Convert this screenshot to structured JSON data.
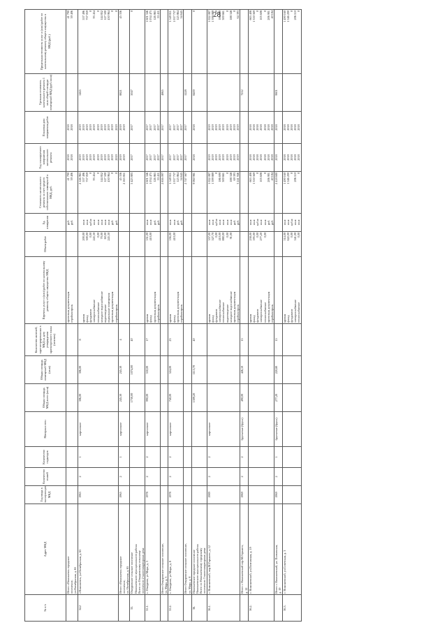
{
  "page_number": "28",
  "headers": [
    "№ п/п",
    "Адрес МКД",
    "Год ввода в эксплуатацию МКД",
    "Количество этажей",
    "Количество подъездов",
    "Материал стен",
    "Общая площадь МКД всего (кв.м)",
    "Общая площадь помещений МКД (кв.м)",
    "Количество жителей, зарегистрированных в МКД на дату утверждения краткосрочного плана (человек)",
    "Перечень услуг и (или) работ по капитальному ремонту общего имущества МКД",
    "Объем работ",
    "Ед. измерения",
    "Стоимость капитального ремонта за счет средств собственников помещений в МКД, руб.",
    "Год планируемого завершения капитального ремонта",
    "Плановая дата завершения работ",
    "Удельная стоимость капитального ремонта 1 кв.м общей площади помещений МКД (руб./кв.м)",
    "Предельная стоимость услуг и (или) работ по капитальному ремонту общего имущества в МКД (руб.)"
  ],
  "rows": [
    {
      "num": "",
      "addr": [
        "Итого г.Николаевск городское",
        "поселение,",
        "ул.Октябрьская, д. 65"
      ],
      "year": "",
      "floors": "",
      "entr": "",
      "walls": "",
      "area": "",
      "area2": "",
      "people": "",
      "works": [
        "проектная документация",
        "стройконтроль"
      ],
      "vol": [],
      "units": [
        "руб.",
        "руб."
      ],
      "cost": [
        "41 790",
        "39 406"
      ],
      "yr": [
        "2018",
        "2018"
      ],
      "yr2": [
        "2018",
        "2018"
      ],
      "unit_cost": "",
      "limit": [
        "41 790",
        "39 406"
      ]
    },
    {
      "num": "34.2",
      "addr": [
        "г.Николаевск, ул.Октябрьская, д. 65"
      ],
      "year": "1963",
      "floors": "2",
      "entr": "1",
      "walls": "кирпичное",
      "area": "306,00",
      "area2": "306,00",
      "people": "8",
      "works": [
        "",
        "кровля",
        "фасад",
        "фундамент",
        "электроснабжение",
        "теплоснабжение",
        "холодное водоснабжение",
        "водоотведение",
        "подвальные помещения",
        "проектная документация",
        "стройконтроль"
      ],
      "vol": [
        "",
        "200,00",
        "300,00",
        "0,00",
        "245,30",
        "0,00",
        "70,00",
        "60,00",
        "245,30",
        "",
        ""
      ],
      "units": [
        "",
        "кв.м",
        "кв.м",
        "куб.м",
        "кв.м",
        "кв.м",
        "кв.м",
        "кв.м",
        "кв.м",
        "руб.",
        "руб."
      ],
      "cost": [
        "2 126 965",
        "557 496",
        "757 059",
        "0",
        "93 454",
        "0",
        "144 852",
        "127 500",
        "430 964",
        "0",
        "0"
      ],
      "yr": [
        "2019",
        "2019",
        "2019",
        "2019",
        "2019",
        "2019",
        "2019",
        "2019",
        "2019",
        "2019",
        "2019"
      ],
      "yr2": [
        "2019",
        "2019",
        "2019",
        "2019",
        "2019",
        "2019",
        "2019",
        "2019",
        "2019",
        "2019",
        "2019"
      ],
      "unit_cost": "5465",
      "limit": [
        "",
        "557 496",
        "757 059",
        "0",
        "93 454",
        "0",
        "144 852",
        "127 500",
        "430 964",
        "0",
        "0"
      ]
    },
    {
      "num": "",
      "addr": [
        "Итого г.Николаевск городское",
        "поселение,",
        "ул. Октябрьская, д. 65"
      ],
      "year": "1965",
      "floors": "2",
      "entr": "1",
      "walls": "кирпичное",
      "area": "245,30",
      "area2": "245,30",
      "people": "4",
      "works": [],
      "vol": [],
      "units": [],
      "cost": [
        "45 336",
        "2 163 851"
      ],
      "yr": [
        "2019",
        "2019"
      ],
      "yr2": [
        "2019",
        "2019"
      ],
      "unit_cost": "8821",
      "limit": [
        "45 336"
      ]
    },
    {
      "num": "35.",
      "addr": [
        "Очкуровское сельское поселение",
        "Николаевского муниципального района",
        "Всего по Очкуровскому сельскому",
        "поселению 2 многоквартирных дома"
      ],
      "year": "",
      "floors": "",
      "entr": "",
      "walls": "",
      "area": "1730,00",
      "area2": "1074,00",
      "people": "40",
      "works": [],
      "vol": [],
      "units": [],
      "cost": [
        "5 423 805"
      ],
      "yr": [
        "2017"
      ],
      "yr2": [
        "2017"
      ],
      "unit_cost": "5047",
      "limit": [
        "0"
      ]
    },
    {
      "num": "35.1.",
      "addr": [
        "с. Очкурово, ул Мира, д. 3"
      ],
      "year": "1978",
      "floors": "2",
      "entr": "2",
      "walls": "кирпичное",
      "area": "990,00",
      "area2": "550,00",
      "people": "17",
      "works": [
        "кровля",
        "фасад",
        "проектная документация",
        "стройконтроль"
      ],
      "vol": [
        "551,00",
        "410,00",
        "",
        ""
      ],
      "units": [
        "кв.м",
        "кв.м",
        "руб.",
        "руб."
      ],
      "cost": [
        "1 601 346",
        "1 034 475",
        "126 865",
        "53 411"
      ],
      "yr": [
        "2017",
        "2017",
        "2017",
        "2017"
      ],
      "yr2": [
        "2017",
        "2017",
        "2017",
        "2017"
      ],
      "unit_cost": "",
      "limit": [
        "1 601 346",
        "1 034 475",
        "126 865",
        "53 411"
      ]
    },
    {
      "num": "",
      "addr": [
        "Итого Очкуровское сельское поселение,",
        "ул. Мира, д. 3"
      ],
      "year": "",
      "floors": "",
      "entr": "",
      "walls": "",
      "area": "",
      "area2": "",
      "people": "",
      "works": [],
      "vol": [],
      "units": [],
      "cost": [
        "2 816 097"
      ],
      "yr": [
        "2017"
      ],
      "yr2": [
        "2017"
      ],
      "unit_cost": "4865",
      "limit": []
    },
    {
      "num": "35.2.",
      "addr": [
        "с. Очкурово, ул Мира, д. 8"
      ],
      "year": "1978",
      "floors": "2",
      "entr": "2",
      "walls": "кирпичное",
      "area": "740,00",
      "area2": "524,00",
      "people": "23",
      "works": [
        "кровля",
        "фасад",
        "проектная документация",
        "стройконтроль"
      ],
      "vol": [
        "556,00",
        "410,00",
        "",
        ""
      ],
      "units": [
        "кв.м",
        "кв.м",
        "руб.",
        "руб."
      ],
      "cost": [
        "1 549 811",
        "1 017 737",
        "125 864",
        "54 645"
      ],
      "yr": [
        "2017",
        "2017",
        "2017",
        "2017"
      ],
      "yr2": [
        "2017",
        "2017",
        "2017",
        "2017"
      ],
      "unit_cost": "",
      "limit": [
        "1 549 811",
        "1 017 737",
        "125 864",
        "54 645"
      ]
    },
    {
      "num": "",
      "addr": [
        "Итого Очкуровское сельское поселение,",
        "ул. Мира, д. 8"
      ],
      "year": "",
      "floors": "",
      "entr": "",
      "walls": "",
      "area": "",
      "area2": "",
      "people": "",
      "works": [],
      "vol": [],
      "units": [],
      "cost": [
        "2 747 567"
      ],
      "yr": [
        "2017"
      ],
      "yr2": [
        "2017"
      ],
      "unit_cost": "5228",
      "limit": []
    },
    {
      "num": "36.",
      "addr": [
        "Николаевское городское поселение",
        "Николаевского муниципального района",
        "Всего по Николаевскому городскому",
        "поселению 3 многоквартирных дома"
      ],
      "year": "",
      "floors": "",
      "entr": "",
      "walls": "",
      "area": "1309,20",
      "area2": "1113,70",
      "people": "40",
      "works": [],
      "vol": [],
      "units": [],
      "cost": [
        "9 060 981"
      ],
      "yr": [
        "2018"
      ],
      "yr2": [
        "2018"
      ],
      "unit_cost": "8400",
      "limit": [
        "0"
      ]
    },
    {
      "num": "36.1.",
      "addr": [
        "г. Николаевский, пер.М.Горького, д. 12"
      ],
      "year": "1989",
      "floors": "2",
      "entr": "2",
      "walls": "кирпичное",
      "area": "",
      "area2": "",
      "people": "",
      "works": [
        "кровля",
        "фасад",
        "фундамент",
        "электроснабжение",
        "теплоснабжение",
        "водоотведение",
        "холодное водоснабжение",
        "проектная документация",
        "стройконтроль"
      ],
      "vol": [
        "357,00",
        "527,70",
        "0,00",
        "410,00",
        "880,00",
        "0,00",
        "91,00",
        "",
        ""
      ],
      "units": [
        "кв.м",
        "кв.м",
        "куб.м",
        "кв.м",
        "кв.м",
        "кв.м",
        "кв.м",
        "руб.",
        "руб."
      ],
      "cost": [
        "1 022 087",
        "1 399 889",
        "0",
        "186 690",
        "300 661",
        "0",
        "188 348",
        "69 393",
        "3 241 946"
      ],
      "yr": [
        "2019",
        "2019",
        "2019",
        "2019",
        "2019",
        "2019",
        "2019",
        "2019",
        "2019"
      ],
      "yr2": [
        "2019",
        "2019",
        "2019",
        "2019",
        "2019",
        "2019",
        "2019",
        "2019",
        "2019"
      ],
      "unit_cost": "",
      "limit": [
        "1 022 087",
        "1 399 889",
        "0",
        "186 690",
        "300 661",
        "0",
        "188 348",
        "0",
        "64 393"
      ]
    },
    {
      "num": "",
      "addr": [
        "Итого г. Николаевский пер.М.Горького,",
        "д. 12"
      ],
      "year": "1969",
      "floors": "2",
      "entr": "2",
      "walls": "брусчатые (бруса)",
      "area": "490,00",
      "area2": "426,10",
      "people": "15",
      "works": [],
      "vol": [],
      "units": [],
      "cost": [],
      "yr": [],
      "yr2": [],
      "unit_cost": "7212",
      "limit": []
    },
    {
      "num": "36.2.",
      "addr": [
        "г. Николаевский, ул.Полтавская, д. 19"
      ],
      "year": "",
      "floors": "",
      "entr": "",
      "walls": "",
      "area": "",
      "area2": "",
      "people": "",
      "works": [
        "кровля",
        "фасад",
        "фундамент",
        "электроснабжение",
        "теплоснабжение",
        "проектная документация",
        "стройконтроль"
      ],
      "vol": [
        "238,00",
        "593,00",
        "0,00",
        "277,20",
        "0,00",
        "",
        ""
      ],
      "units": [
        "кв.м",
        "кв.м",
        "куб.м",
        "кв.м",
        "кв.м",
        "руб.",
        "руб."
      ],
      "cost": [
        "663 408",
        "1 350 569",
        "0",
        "105 608",
        "0",
        "206 901",
        "40 184"
      ],
      "yr": [
        "2018",
        "2018",
        "2018",
        "2018",
        "2018",
        "2018",
        "2018"
      ],
      "yr2": [
        "2018",
        "2018",
        "2018",
        "2018",
        "2018",
        "2018",
        "2018"
      ],
      "unit_cost": "",
      "limit": [
        "663 408",
        "1 350 569",
        "0",
        "105 608",
        "0",
        "206 901",
        "40 184"
      ]
    },
    {
      "num": "",
      "addr": [
        "Итого г. Николаевский, ул. Полтавская,",
        "д. 19"
      ],
      "year": "1969",
      "floors": "2",
      "entr": "1",
      "walls": "брусчатые (бруса)",
      "area": "277,20",
      "area2": "220,80",
      "people": "15",
      "works": [],
      "vol": [],
      "units": [],
      "cost": [
        "2 418 680"
      ],
      "yr": [
        "2018"
      ],
      "yr2": [
        "2018"
      ],
      "unit_cost": "9801",
      "limit": []
    },
    {
      "num": "36.3.",
      "addr": [
        "г. Николаевский, ул.Советская, д. 3"
      ],
      "year": "",
      "floors": "",
      "entr": "",
      "walls": "",
      "area": "",
      "area2": "",
      "people": "",
      "works": [
        "кровля",
        "фасад",
        "фундамент",
        "электроснабжение",
        "теплоснабжение"
      ],
      "vol": [
        "514,00",
        "622,00",
        "0,00",
        "541,00",
        "0,00"
      ],
      "units": [
        "кв.м",
        "кв.м",
        "куб.м",
        "кв.м",
        "кв.м"
      ],
      "cost": [
        "1 490 160",
        "1 546 200",
        "0",
        "206 110",
        "0"
      ],
      "yr": [
        "2018",
        "2018",
        "2018",
        "2018",
        "2018"
      ],
      "yr2": [
        "2018",
        "2018",
        "2018",
        "2018",
        "2018"
      ],
      "unit_cost": "",
      "limit": [
        "1 490 160",
        "1 546 200",
        "0",
        "206 110",
        "0"
      ]
    }
  ]
}
